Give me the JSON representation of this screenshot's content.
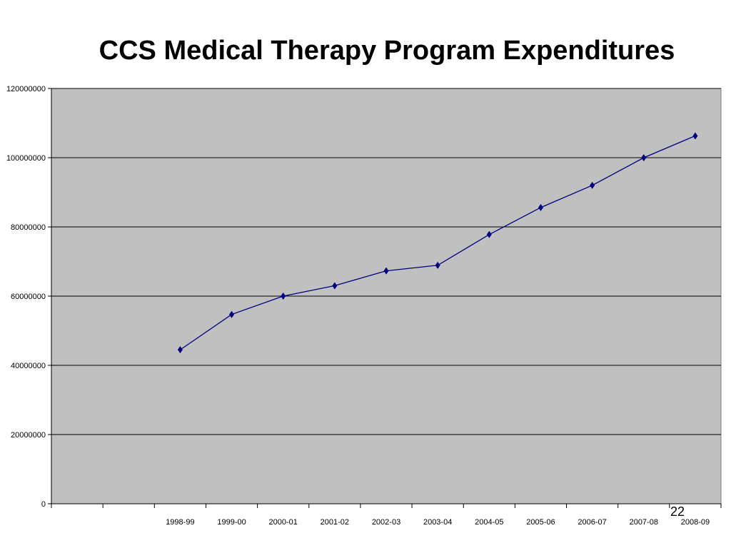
{
  "slide_number": "22",
  "chart_data": {
    "type": "line",
    "title": "CCS Medical Therapy Program Expenditures",
    "xlabel": "",
    "ylabel": "",
    "categories": [
      "",
      "",
      "1998-99",
      "1999-00",
      "2000-01",
      "2001-02",
      "2002-03",
      "2003-04",
      "2004-05",
      "2005-06",
      "2006-07",
      "2007-08",
      "2008-09"
    ],
    "series": [
      {
        "values": [
          null,
          null,
          44500000,
          54700000,
          60000000,
          63000000,
          67300000,
          68900000,
          77800000,
          85600000,
          92000000,
          100000000,
          106300000
        ],
        "color": "#000080",
        "marker": "diamond"
      }
    ],
    "ylim": [
      0,
      120000000
    ],
    "yticks": [
      0,
      20000000,
      40000000,
      60000000,
      80000000,
      100000000,
      120000000
    ],
    "ytick_labels": [
      "0",
      "20000000",
      "40000000",
      "60000000",
      "80000000",
      "100000000",
      "120000000"
    ],
    "grid": true,
    "legend": "none",
    "plot_background": "#C0C0C0"
  }
}
